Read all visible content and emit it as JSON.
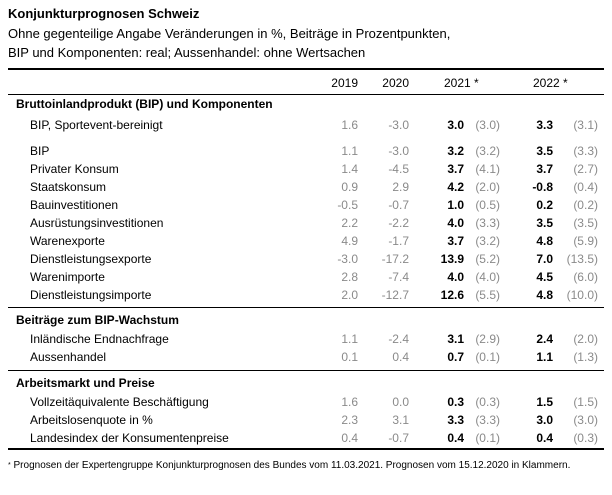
{
  "title": "Konjunkturprognosen Schweiz",
  "subtitle_line1": "Ohne gegenteilige Angabe Veränderungen in %, Beiträge in Prozentpunkten,",
  "subtitle_line2": "BIP und Komponenten: real; Aussenhandel: ohne Wertsachen",
  "columns": {
    "y2019": "2019",
    "y2020": "2020",
    "y2021": "2021 *",
    "y2022": "2022 *"
  },
  "sections": [
    {
      "heading": "Bruttoinlandprodukt (BIP) und Komponenten",
      "rows": [
        {
          "label": "BIP, Sportevent-bereinigt",
          "v2019": "1.6",
          "v2020": "-3.0",
          "v2021": "3.0",
          "p2021": "(3.0)",
          "v2022": "3.3",
          "p2022": "(3.1)"
        },
        {
          "label": "BIP",
          "v2019": "1.1",
          "v2020": "-3.0",
          "v2021": "3.2",
          "p2021": "(3.2)",
          "v2022": "3.5",
          "p2022": "(3.3)"
        },
        {
          "label": "Privater Konsum",
          "v2019": "1.4",
          "v2020": "-4.5",
          "v2021": "3.7",
          "p2021": "(4.1)",
          "v2022": "3.7",
          "p2022": "(2.7)"
        },
        {
          "label": "Staatskonsum",
          "v2019": "0.9",
          "v2020": "2.9",
          "v2021": "4.2",
          "p2021": "(2.0)",
          "v2022": "-0.8",
          "p2022": "(0.4)"
        },
        {
          "label": "Bauinvestitionen",
          "v2019": "-0.5",
          "v2020": "-0.7",
          "v2021": "1.0",
          "p2021": "(0.5)",
          "v2022": "0.2",
          "p2022": "(0.2)"
        },
        {
          "label": "Ausrüstungsinvestitionen",
          "v2019": "2.2",
          "v2020": "-2.2",
          "v2021": "4.0",
          "p2021": "(3.3)",
          "v2022": "3.5",
          "p2022": "(3.5)"
        },
        {
          "label": "Warenexporte",
          "v2019": "4.9",
          "v2020": "-1.7",
          "v2021": "3.7",
          "p2021": "(3.2)",
          "v2022": "4.8",
          "p2022": "(5.9)"
        },
        {
          "label": "Dienstleistungsexporte",
          "v2019": "-3.0",
          "v2020": "-17.2",
          "v2021": "13.9",
          "p2021": "(5.2)",
          "v2022": "7.0",
          "p2022": "(13.5)"
        },
        {
          "label": "Warenimporte",
          "v2019": "2.8",
          "v2020": "-7.4",
          "v2021": "4.0",
          "p2021": "(4.0)",
          "v2022": "4.5",
          "p2022": "(6.0)"
        },
        {
          "label": "Dienstleistungsimporte",
          "v2019": "2.0",
          "v2020": "-12.7",
          "v2021": "12.6",
          "p2021": "(5.5)",
          "v2022": "4.8",
          "p2022": "(10.0)"
        }
      ]
    },
    {
      "heading": "Beiträge zum BIP-Wachstum",
      "rows": [
        {
          "label": "Inländische Endnachfrage",
          "v2019": "1.1",
          "v2020": "-2.4",
          "v2021": "3.1",
          "p2021": "(2.9)",
          "v2022": "2.4",
          "p2022": "(2.0)"
        },
        {
          "label": "Aussenhandel",
          "v2019": "0.1",
          "v2020": "0.4",
          "v2021": "0.7",
          "p2021": "(0.1)",
          "v2022": "1.1",
          "p2022": "(1.3)"
        }
      ]
    },
    {
      "heading": "Arbeitsmarkt und Preise",
      "rows": [
        {
          "label": "Vollzeitäquivalente Beschäftigung",
          "v2019": "1.6",
          "v2020": "0.0",
          "v2021": "0.3",
          "p2021": "(0.3)",
          "v2022": "1.5",
          "p2022": "(1.5)"
        },
        {
          "label": "Arbeitslosenquote in %",
          "v2019": "2.3",
          "v2020": "3.1",
          "v2021": "3.3",
          "p2021": "(3.3)",
          "v2022": "3.0",
          "p2022": "(3.0)"
        },
        {
          "label": "Landesindex der Konsumentenpreise",
          "v2019": "0.4",
          "v2020": "-0.7",
          "v2021": "0.4",
          "p2021": "(0.1)",
          "v2022": "0.4",
          "p2022": "(0.3)"
        }
      ]
    }
  ],
  "footnote_marker": "*",
  "footnote": "Prognosen der Expertengruppe Konjunkturprognosen des Bundes vom 11.03.2021. Prognosen vom 15.12.2020 in Klammern."
}
